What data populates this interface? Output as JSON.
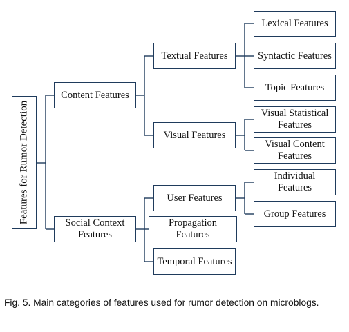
{
  "diagram": {
    "root": "Features for Rumor Detection",
    "content": {
      "label": "Content Features",
      "textual": {
        "label": "Textual Features",
        "lexical": "Lexical Features",
        "syntactic": "Syntactic Features",
        "topic": "Topic Features"
      },
      "visual": {
        "label": "Visual Features",
        "statistical": "Visual Statistical Features",
        "content": "Visual Content Features"
      }
    },
    "social": {
      "label": "Social Context Features",
      "user": {
        "label": "User Features",
        "individual": "Individual Features",
        "group": "Group Features"
      },
      "propagation": "Propagation Features",
      "temporal": "Temporal Features"
    }
  },
  "caption": "Fig. 5. Main categories of features used for rumor detection on microblogs.",
  "colors": {
    "border": "#1f3b5c",
    "line": "#1f3b5c",
    "text": "#111111",
    "background": "#ffffff"
  }
}
